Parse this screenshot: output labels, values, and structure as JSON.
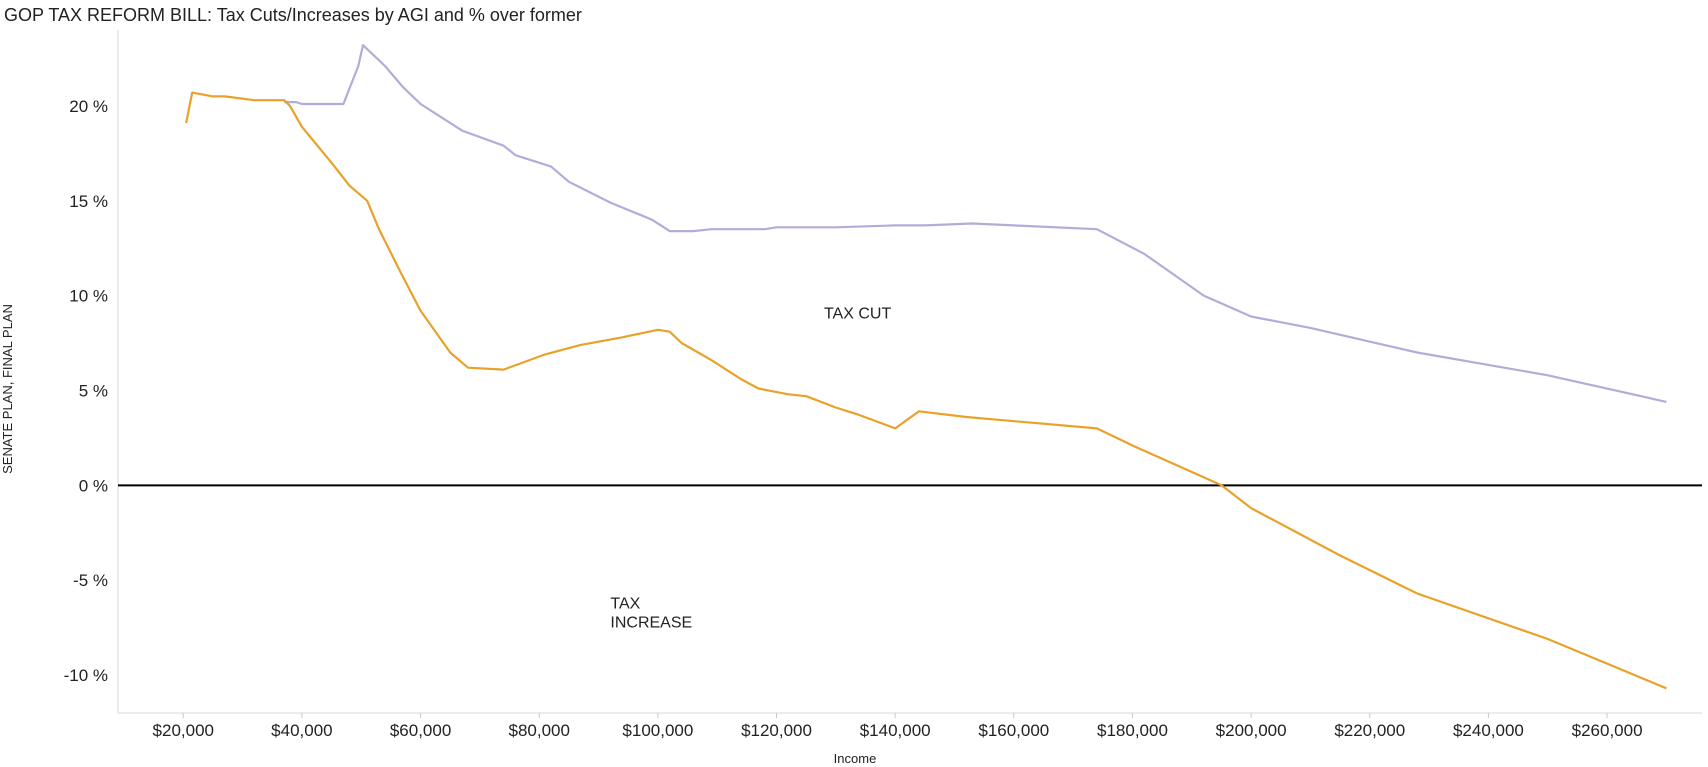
{
  "chart_data": {
    "type": "line",
    "title": "GOP TAX REFORM BILL: Tax Cuts/Increases by AGI and % over former",
    "xlabel": "Income",
    "ylabel": "SENATE PLAN, FINAL PLAN",
    "xlim": [
      9000,
      276000
    ],
    "ylim": [
      -12,
      24
    ],
    "x_ticks": [
      20000,
      40000,
      60000,
      80000,
      100000,
      120000,
      140000,
      160000,
      180000,
      200000,
      220000,
      240000,
      260000
    ],
    "x_tick_labels": [
      "$20,000",
      "$40,000",
      "$60,000",
      "$80,000",
      "$100,000",
      "$120,000",
      "$140,000",
      "$160,000",
      "$180,000",
      "$200,000",
      "$220,000",
      "$240,000",
      "$260,000"
    ],
    "y_ticks": [
      20,
      15,
      10,
      5,
      0,
      -5,
      -10
    ],
    "y_tick_labels": [
      "20 %",
      "15 %",
      "10 %",
      "5 %",
      "0 %",
      "-5 %",
      "-10 %"
    ],
    "zero_line": true,
    "grid": false,
    "legend": "none",
    "annotations": [
      {
        "lines": [
          "TAX CUT"
        ],
        "x": 128000,
        "y": 8.8
      },
      {
        "lines": [
          "TAX",
          "INCREASE"
        ],
        "x": 92000,
        "y": -6.5
      }
    ],
    "series": [
      {
        "color": "#b3acd9",
        "points": [
          [
            37000,
            20.2
          ],
          [
            39000,
            20.2
          ],
          [
            40000,
            20.1
          ],
          [
            44000,
            20.1
          ],
          [
            47000,
            20.1
          ],
          [
            49500,
            22.1
          ],
          [
            50300,
            23.2
          ],
          [
            54000,
            22.1
          ],
          [
            57000,
            21.0
          ],
          [
            60000,
            20.1
          ],
          [
            67000,
            18.7
          ],
          [
            74000,
            17.9
          ],
          [
            76000,
            17.4
          ],
          [
            82000,
            16.8
          ],
          [
            85000,
            16.0
          ],
          [
            92000,
            14.9
          ],
          [
            99000,
            14.0
          ],
          [
            102000,
            13.4
          ],
          [
            106000,
            13.4
          ],
          [
            109000,
            13.5
          ],
          [
            115000,
            13.5
          ],
          [
            118000,
            13.5
          ],
          [
            120000,
            13.6
          ],
          [
            130000,
            13.6
          ],
          [
            140000,
            13.7
          ],
          [
            145000,
            13.7
          ],
          [
            153000,
            13.8
          ],
          [
            160000,
            13.7
          ],
          [
            174000,
            13.5
          ],
          [
            182000,
            12.2
          ],
          [
            192000,
            10.0
          ],
          [
            200000,
            8.9
          ],
          [
            210000,
            8.3
          ],
          [
            228000,
            7.0
          ],
          [
            250000,
            5.8
          ],
          [
            270000,
            4.4
          ]
        ]
      },
      {
        "color": "#e9a229",
        "points": [
          [
            20500,
            19.1
          ],
          [
            21500,
            20.7
          ],
          [
            25000,
            20.5
          ],
          [
            27000,
            20.5
          ],
          [
            32000,
            20.3
          ],
          [
            37000,
            20.3
          ],
          [
            38000,
            20.0
          ],
          [
            40000,
            18.9
          ],
          [
            45000,
            17.0
          ],
          [
            48000,
            15.8
          ],
          [
            51000,
            15.0
          ],
          [
            53000,
            13.5
          ],
          [
            57000,
            11.0
          ],
          [
            60000,
            9.2
          ],
          [
            65000,
            7.0
          ],
          [
            68000,
            6.2
          ],
          [
            74000,
            6.1
          ],
          [
            81000,
            6.9
          ],
          [
            87000,
            7.4
          ],
          [
            94000,
            7.8
          ],
          [
            100000,
            8.2
          ],
          [
            102000,
            8.1
          ],
          [
            104000,
            7.5
          ],
          [
            109000,
            6.6
          ],
          [
            114000,
            5.6
          ],
          [
            117000,
            5.1
          ],
          [
            122000,
            4.8
          ],
          [
            125000,
            4.7
          ],
          [
            130000,
            4.1
          ],
          [
            134000,
            3.7
          ],
          [
            140000,
            3.0
          ],
          [
            144000,
            3.9
          ],
          [
            152000,
            3.6
          ],
          [
            174000,
            3.0
          ],
          [
            180000,
            2.1
          ],
          [
            195000,
            0.0
          ],
          [
            200000,
            -1.2
          ],
          [
            215000,
            -3.7
          ],
          [
            228000,
            -5.7
          ],
          [
            250000,
            -8.1
          ],
          [
            270000,
            -10.7
          ]
        ]
      }
    ]
  }
}
